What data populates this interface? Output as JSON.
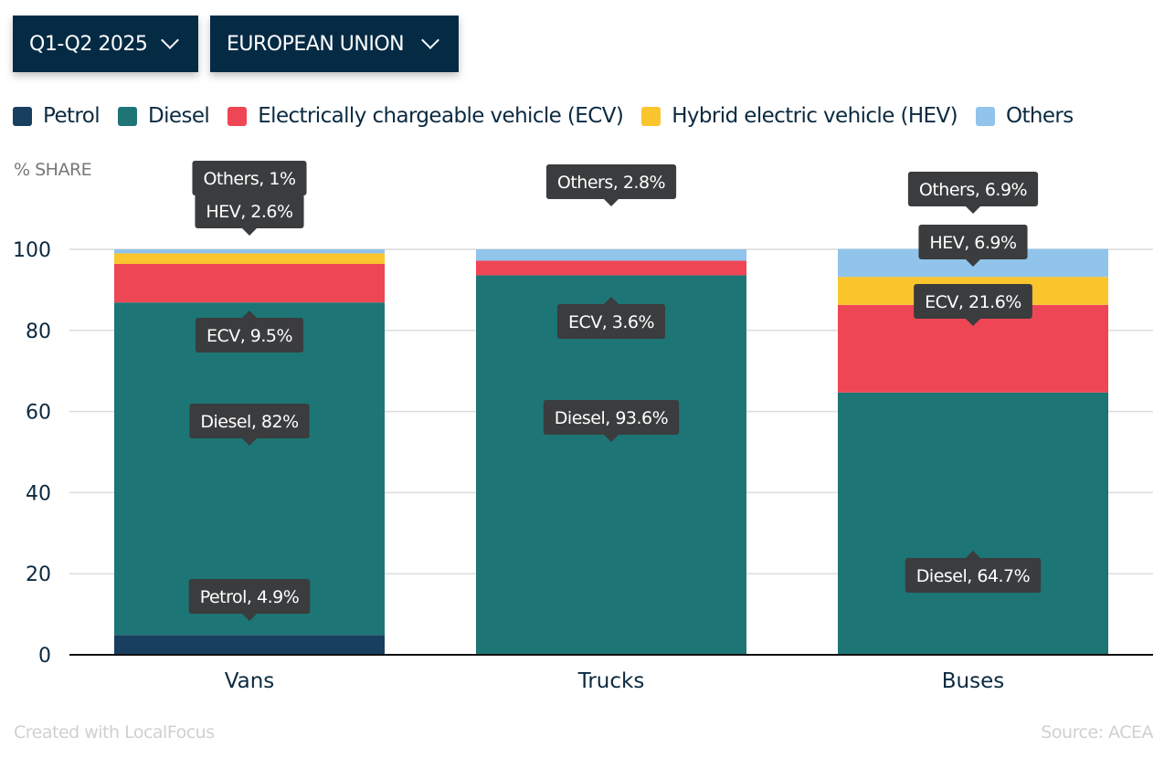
{
  "filters": {
    "period": {
      "label": "Q1-Q2 2025",
      "icon": "chevron-down-icon"
    },
    "region": {
      "label": "EUROPEAN UNION",
      "icon": "chevron-down-icon"
    }
  },
  "colors": {
    "Petrol": "#183f60",
    "Diesel": "#1e7575",
    "ECV": "#ef4655",
    "HEV": "#fbc52d",
    "Others": "#91c4ea",
    "tooltip": "#3a3c3e",
    "filter_bg": "#052a44"
  },
  "legend": [
    {
      "key": "Petrol",
      "label": "Petrol"
    },
    {
      "key": "Diesel",
      "label": "Diesel"
    },
    {
      "key": "ECV",
      "label": "Electrically chargeable vehicle (ECV)"
    },
    {
      "key": "HEV",
      "label": "Hybrid electric vehicle (HEV)"
    },
    {
      "key": "Others",
      "label": "Others"
    }
  ],
  "footer": {
    "credit": "Created with LocalFocus",
    "source": "Source:  ACEA"
  },
  "chart_data": {
    "type": "bar",
    "stacked": true,
    "ylabel": "% SHARE",
    "xlabel": "",
    "ylim": [
      0,
      100
    ],
    "yticks": [
      0,
      20,
      40,
      60,
      80,
      100
    ],
    "grid": true,
    "legend_position": "top-left",
    "categories": [
      "Vans",
      "Trucks",
      "Buses"
    ],
    "series": [
      {
        "name": "Petrol",
        "values": [
          4.9,
          0,
          0
        ]
      },
      {
        "name": "Diesel",
        "values": [
          82,
          93.6,
          64.7
        ]
      },
      {
        "name": "ECV",
        "values": [
          9.5,
          3.6,
          21.6
        ]
      },
      {
        "name": "HEV",
        "values": [
          2.6,
          0,
          6.9
        ]
      },
      {
        "name": "Others",
        "values": [
          1,
          2.8,
          6.9
        ]
      }
    ],
    "annotations": [
      {
        "category": "Vans",
        "series": "Others",
        "text": "Others, 1%"
      },
      {
        "category": "Vans",
        "series": "HEV",
        "text": "HEV, 2.6%"
      },
      {
        "category": "Vans",
        "series": "ECV",
        "text": "ECV, 9.5%"
      },
      {
        "category": "Vans",
        "series": "Diesel",
        "text": "Diesel, 82%"
      },
      {
        "category": "Vans",
        "series": "Petrol",
        "text": "Petrol, 4.9%"
      },
      {
        "category": "Trucks",
        "series": "Others",
        "text": "Others, 2.8%"
      },
      {
        "category": "Trucks",
        "series": "ECV",
        "text": "ECV, 3.6%"
      },
      {
        "category": "Trucks",
        "series": "Diesel",
        "text": "Diesel, 93.6%"
      },
      {
        "category": "Buses",
        "series": "Others",
        "text": "Others, 6.9%"
      },
      {
        "category": "Buses",
        "series": "HEV",
        "text": "HEV, 6.9%"
      },
      {
        "category": "Buses",
        "series": "ECV",
        "text": "ECV, 21.6%"
      },
      {
        "category": "Buses",
        "series": "Diesel",
        "text": "Diesel, 64.7%"
      }
    ]
  }
}
